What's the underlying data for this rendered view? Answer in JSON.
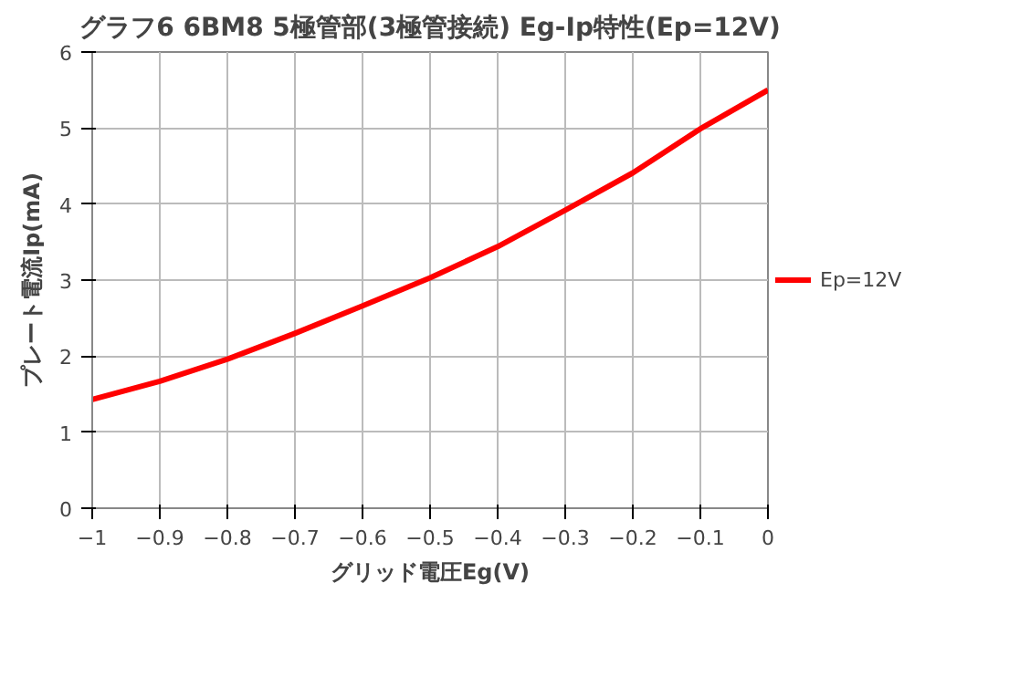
{
  "chart_data": {
    "type": "line",
    "title": "グラフ6 6BM8 5極管部(3極管接続) Eg-Ip特性(Ep=12V)",
    "xlabel": "グリッド電圧Eg(V)",
    "ylabel": "プレート電流Ip(mA)",
    "x": [
      -1,
      -0.9,
      -0.8,
      -0.7,
      -0.6,
      -0.5,
      -0.4,
      -0.3,
      -0.2,
      -0.1,
      0
    ],
    "series": [
      {
        "name": "Ep=12V",
        "color": "#ff0000",
        "values": [
          1.43,
          1.67,
          1.96,
          2.3,
          2.66,
          3.03,
          3.44,
          3.92,
          4.41,
          4.99,
          5.5
        ]
      }
    ],
    "xlim": [
      -1,
      0
    ],
    "xticks": [
      -1,
      -0.9,
      -0.8,
      -0.7,
      -0.6,
      -0.5,
      -0.4,
      -0.3,
      -0.2,
      -0.1,
      0
    ],
    "ylim": [
      0,
      6
    ],
    "yticks": [
      0,
      1,
      2,
      3,
      4,
      5,
      6
    ],
    "grid": true,
    "legend": "right",
    "marker": "none",
    "line_style": "solid"
  }
}
